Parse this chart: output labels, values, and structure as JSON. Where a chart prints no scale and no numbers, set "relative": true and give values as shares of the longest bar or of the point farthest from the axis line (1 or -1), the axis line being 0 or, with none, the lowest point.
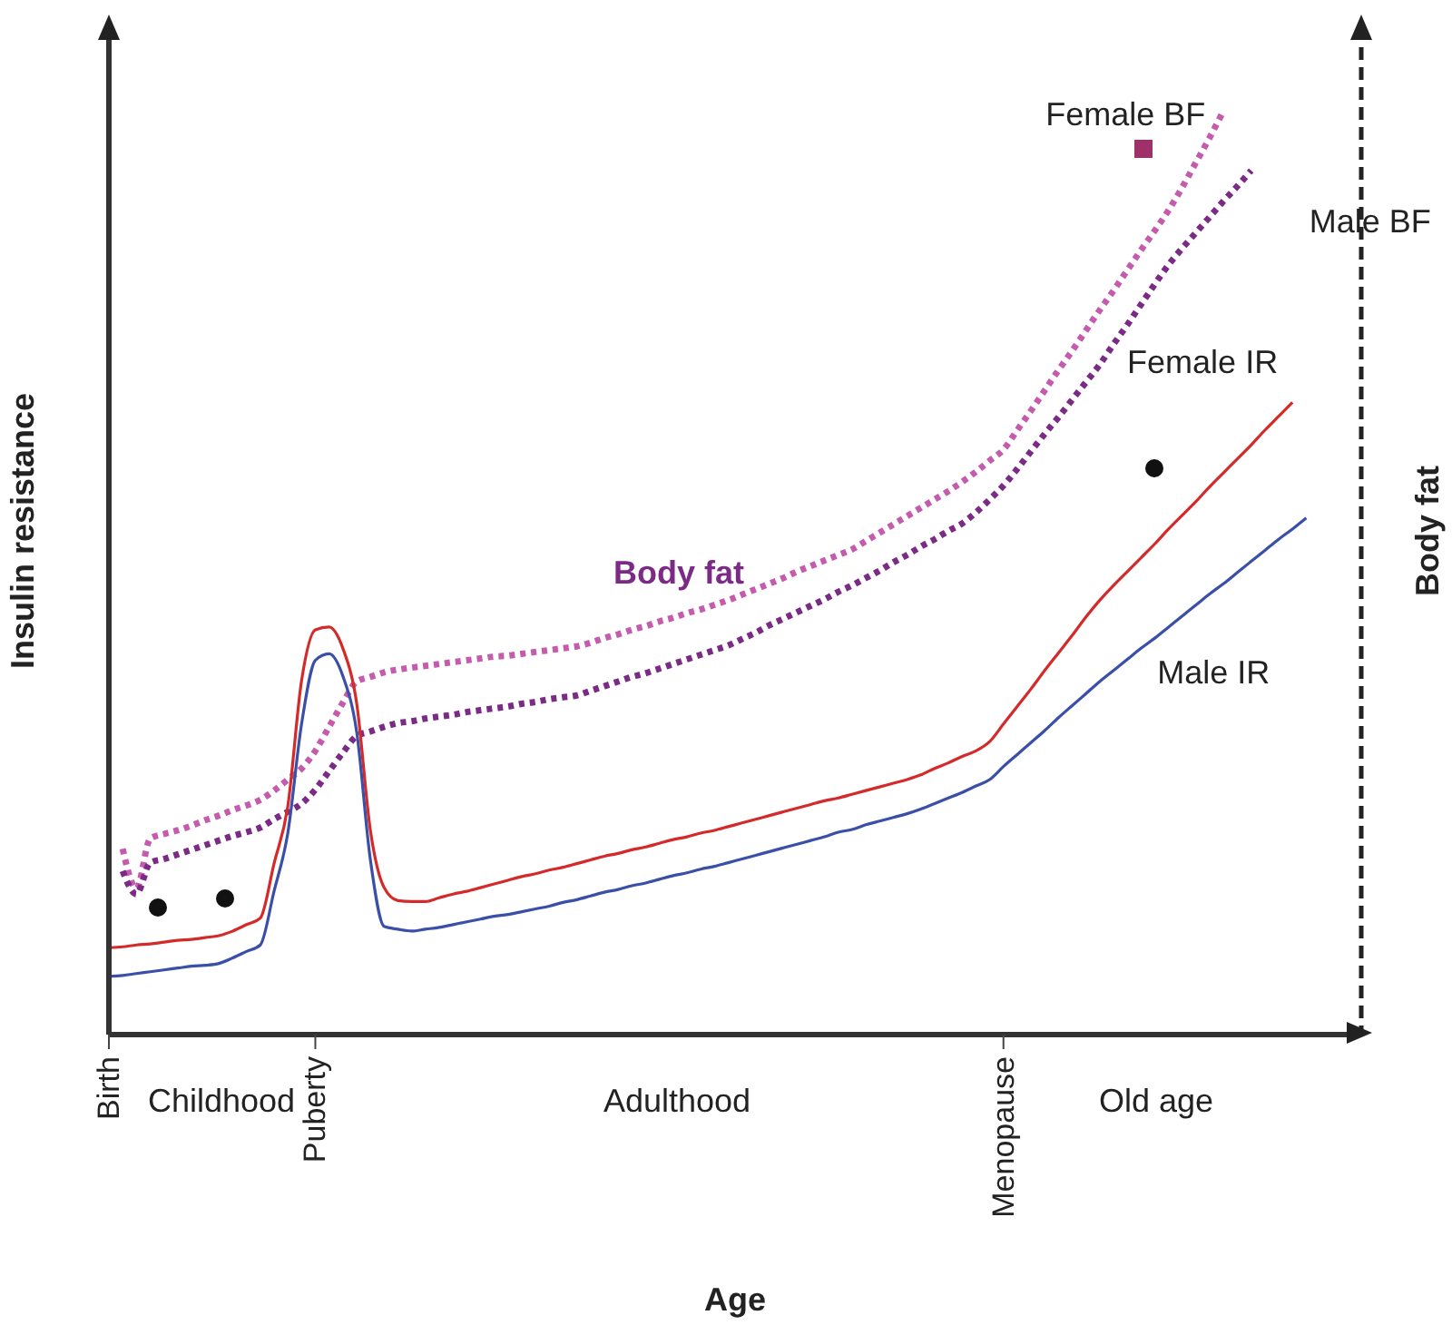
{
  "chart_data": {
    "type": "line",
    "relative": true,
    "xlabel": "Age",
    "ylabel": "Insulin resistance",
    "y2label": "Body fat",
    "categories": [
      "Birth",
      null,
      null,
      null,
      null,
      null,
      null,
      null,
      null,
      null,
      null,
      null,
      null,
      null,
      null,
      "Puberty",
      null,
      null,
      null,
      null,
      null,
      null,
      null,
      null,
      null,
      null,
      null,
      null,
      null,
      null,
      null,
      null,
      null,
      null,
      null,
      null,
      null,
      null,
      null,
      null,
      null,
      null,
      null,
      null,
      null,
      null,
      null,
      null,
      null,
      null,
      null,
      null,
      null,
      null,
      null,
      null,
      null,
      null,
      null,
      null,
      null,
      null,
      null,
      null,
      null,
      "Menopause",
      null,
      null,
      null,
      null,
      null,
      null,
      null,
      null,
      null,
      null,
      null,
      null,
      null,
      null,
      null,
      null,
      null,
      null,
      null,
      null,
      null,
      null,
      null,
      null,
      null,
      null
    ],
    "tick_labels": "x",
    "marker": "none",
    "annotations": [
      "Childhood",
      "Adulthood",
      "Old age",
      "Body fat"
    ],
    "series": [
      {
        "name": "Female BF",
        "color": "#c55bac",
        "line_style": "dotted",
        "values": [
          null,
          0.201,
          0.158,
          0.212,
          0.217,
          0.221,
          0.226,
          0.232,
          0.237,
          0.243,
          0.248,
          0.254,
          0.264,
          0.276,
          0.288,
          0.307,
          0.333,
          0.359,
          0.382,
          0.387,
          0.392,
          0.395,
          0.397,
          0.399,
          0.401,
          0.403,
          0.405,
          0.407,
          0.409,
          0.41,
          0.412,
          0.414,
          0.416,
          0.418,
          0.42,
          0.424,
          0.429,
          0.433,
          0.438,
          0.442,
          0.447,
          0.451,
          0.456,
          0.46,
          0.465,
          0.47,
          0.476,
          0.482,
          0.488,
          0.494,
          0.501,
          0.507,
          0.513,
          0.519,
          0.525,
          0.534,
          0.543,
          0.552,
          0.561,
          0.57,
          0.579,
          0.588,
          0.598,
          0.609,
          0.621,
          0.633,
          0.654,
          0.675,
          0.697,
          0.719,
          0.74,
          0.762,
          0.784,
          0.805,
          0.827,
          0.849,
          0.87,
          0.892,
          0.917,
          0.944,
          0.971,
          1,
          null,
          null,
          null,
          null,
          null,
          null,
          null,
          null,
          null,
          null
        ]
      },
      {
        "name": "Male BF",
        "color": "#7b2a85",
        "line_style": "dotted",
        "values": [
          null,
          0.177,
          0.152,
          0.186,
          0.19,
          0.195,
          0.2,
          0.205,
          0.21,
          0.215,
          0.219,
          0.224,
          0.233,
          0.241,
          0.25,
          0.265,
          0.285,
          0.305,
          0.323,
          0.328,
          0.333,
          0.337,
          0.339,
          0.342,
          0.344,
          0.346,
          0.349,
          0.351,
          0.353,
          0.355,
          0.358,
          0.36,
          0.363,
          0.365,
          0.367,
          0.372,
          0.377,
          0.382,
          0.387,
          0.391,
          0.396,
          0.401,
          0.406,
          0.411,
          0.416,
          0.421,
          0.428,
          0.435,
          0.443,
          0.45,
          0.457,
          0.464,
          0.471,
          0.479,
          0.486,
          0.494,
          0.502,
          0.511,
          0.519,
          0.528,
          0.536,
          0.545,
          0.553,
          0.565,
          0.579,
          0.594,
          0.612,
          0.631,
          0.65,
          0.668,
          0.687,
          0.706,
          0.725,
          0.747,
          0.768,
          0.79,
          0.812,
          0.833,
          0.851,
          0.868,
          0.885,
          0.902,
          0.918,
          0.935,
          null,
          null,
          null,
          null,
          null,
          null,
          null,
          null
        ]
      },
      {
        "name": "Female IR",
        "color": "#d42a2a",
        "line_style": "solid",
        "values": [
          0.094,
          0.095,
          0.097,
          0.098,
          0.1,
          0.102,
          0.103,
          0.105,
          0.107,
          0.112,
          0.119,
          0.126,
          0.185,
          0.247,
          0.383,
          0.438,
          0.441,
          0.418,
          0.359,
          0.221,
          0.159,
          0.145,
          0.144,
          0.144,
          0.148,
          0.152,
          0.155,
          0.159,
          0.163,
          0.167,
          0.171,
          0.174,
          0.178,
          0.181,
          0.185,
          0.189,
          0.193,
          0.196,
          0.2,
          0.203,
          0.207,
          0.211,
          0.214,
          0.218,
          0.221,
          0.225,
          0.229,
          0.233,
          0.237,
          0.241,
          0.245,
          0.249,
          0.253,
          0.256,
          0.26,
          0.264,
          0.268,
          0.272,
          0.276,
          0.281,
          0.288,
          0.294,
          0.301,
          0.307,
          0.317,
          0.336,
          0.355,
          0.374,
          0.394,
          0.413,
          0.432,
          0.452,
          0.47,
          0.486,
          0.501,
          0.516,
          0.531,
          0.547,
          0.562,
          0.577,
          0.593,
          0.608,
          0.623,
          0.638,
          0.654,
          0.669,
          0.684,
          null,
          null,
          null,
          null,
          null
        ]
      },
      {
        "name": "Male IR",
        "color": "#3a4fa8",
        "line_style": "solid",
        "values": [
          0.063,
          0.064,
          0.066,
          0.068,
          0.07,
          0.072,
          0.074,
          0.075,
          0.077,
          0.083,
          0.09,
          0.097,
          0.155,
          0.218,
          0.336,
          0.405,
          0.412,
          0.388,
          0.328,
          0.189,
          0.117,
          0.114,
          0.112,
          0.114,
          0.116,
          0.119,
          0.122,
          0.125,
          0.128,
          0.13,
          0.133,
          0.136,
          0.139,
          0.143,
          0.146,
          0.15,
          0.154,
          0.157,
          0.161,
          0.164,
          0.168,
          0.172,
          0.175,
          0.179,
          0.182,
          0.186,
          0.19,
          0.194,
          0.198,
          0.202,
          0.206,
          0.21,
          0.214,
          0.219,
          0.222,
          0.227,
          0.231,
          0.235,
          0.239,
          0.244,
          0.25,
          0.256,
          0.262,
          0.269,
          0.276,
          0.29,
          0.303,
          0.316,
          0.329,
          0.343,
          0.356,
          0.369,
          0.382,
          0.394,
          0.406,
          0.418,
          0.429,
          0.441,
          0.453,
          0.465,
          0.477,
          0.488,
          0.5,
          0.512,
          0.524,
          0.536,
          0.547,
          0.559,
          null,
          null,
          null,
          null
        ]
      }
    ]
  }
}
